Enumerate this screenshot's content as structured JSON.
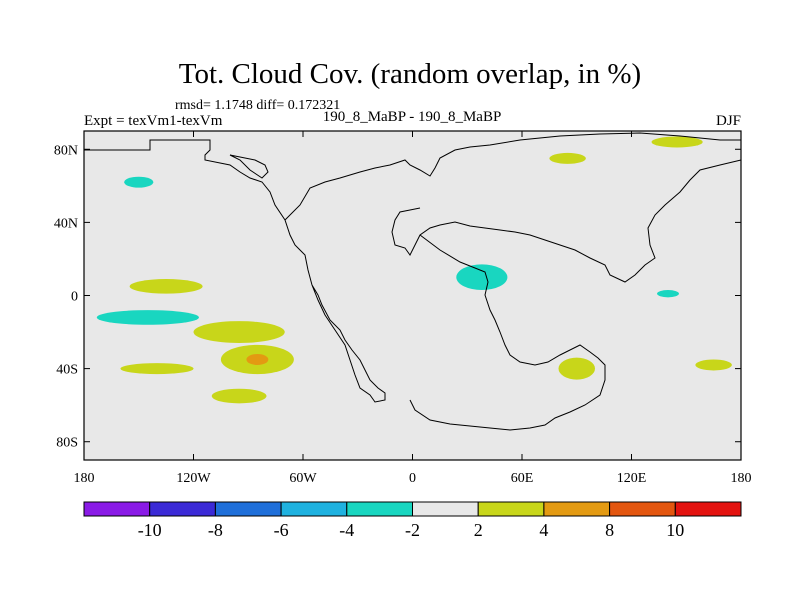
{
  "chart_data": {
    "type": "contour-map",
    "title": "Tot. Cloud Cov. (random overlap, in %)",
    "stats_line": "rmsd= 1.1748  diff= 0.172321",
    "expt_label": "Expt = texVm1-texVm",
    "subtitle": "190_8_MaBP - 190_8_MaBP",
    "season": "DJF",
    "lon_range": [
      -180,
      180
    ],
    "lat_range": [
      -90,
      90
    ],
    "x_ticks": [
      {
        "value": -180,
        "label": "180"
      },
      {
        "value": -120,
        "label": "120W"
      },
      {
        "value": -60,
        "label": "60W"
      },
      {
        "value": 0,
        "label": "0"
      },
      {
        "value": 60,
        "label": "60E"
      },
      {
        "value": 120,
        "label": "120E"
      },
      {
        "value": 180,
        "label": "180"
      }
    ],
    "y_ticks": [
      {
        "value": 80,
        "label": "80N"
      },
      {
        "value": 40,
        "label": "40N"
      },
      {
        "value": 0,
        "label": "0"
      },
      {
        "value": -40,
        "label": "40S"
      },
      {
        "value": -80,
        "label": "80S"
      }
    ],
    "colorbar": {
      "levels": [
        "-10",
        "-8",
        "-6",
        "-4",
        "-2",
        "2",
        "4",
        "8",
        "10"
      ],
      "colors": [
        "#8a1be6",
        "#3b2ad6",
        "#1f6fd9",
        "#1fb2e0",
        "#19d6c0",
        "#e8e8e8",
        "#c8d61a",
        "#e39a12",
        "#e3560f",
        "#e3120f"
      ]
    },
    "background_color": "#e8e8e8",
    "positive_color": "#c8d61a",
    "positive_strong_color": "#e39a12",
    "negative_color": "#19d6c0",
    "anomaly_regions": [
      {
        "sign": "neg",
        "lon": -150,
        "lat": 62,
        "dlon": 8,
        "dlat": 3
      },
      {
        "sign": "pos",
        "lon": 85,
        "lat": 75,
        "dlon": 10,
        "dlat": 3
      },
      {
        "sign": "pos",
        "lon": 145,
        "lat": 84,
        "dlon": 14,
        "dlat": 3
      },
      {
        "sign": "neg",
        "lon": 38,
        "lat": 10,
        "dlon": 14,
        "dlat": 7
      },
      {
        "sign": "pos",
        "lon": -135,
        "lat": 5,
        "dlon": 20,
        "dlat": 4
      },
      {
        "sign": "neg",
        "lon": -145,
        "lat": -12,
        "dlon": 28,
        "dlat": 4
      },
      {
        "sign": "pos",
        "lon": -95,
        "lat": -20,
        "dlon": 25,
        "dlat": 6
      },
      {
        "sign": "pos",
        "lon": -85,
        "lat": -35,
        "dlon": 20,
        "dlat": 8
      },
      {
        "sign": "pos",
        "lon": -140,
        "lat": -40,
        "dlon": 20,
        "dlat": 3
      },
      {
        "sign": "pos",
        "lon": -95,
        "lat": -55,
        "dlon": 15,
        "dlat": 4
      },
      {
        "sign": "pos",
        "lon": 90,
        "lat": -40,
        "dlon": 10,
        "dlat": 6
      },
      {
        "sign": "pos",
        "lon": 165,
        "lat": -38,
        "dlon": 10,
        "dlat": 3
      },
      {
        "sign": "neg",
        "lon": 140,
        "lat": 1,
        "dlon": 6,
        "dlat": 2
      }
    ]
  }
}
